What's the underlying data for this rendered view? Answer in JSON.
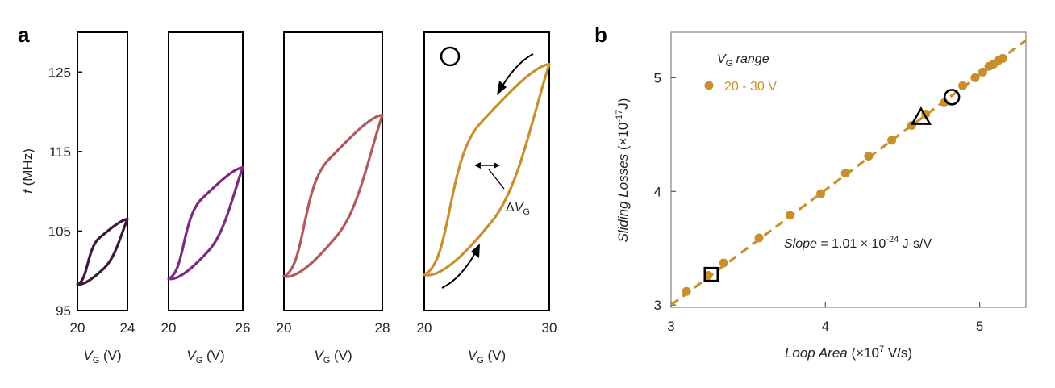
{
  "panels": {
    "a": "a",
    "b": "b"
  },
  "chart_data": [
    {
      "panel": "a",
      "type": "line",
      "subplot_index": 1,
      "ylabel": {
        "italic": "f",
        "rest": " (MHz)"
      },
      "xlabel": {
        "italic": "V",
        "sub": "G",
        "rest": " (V)"
      },
      "yticks": [
        "95",
        "105",
        "115",
        "125"
      ],
      "xticks": [
        "20",
        "24"
      ],
      "xlim": [
        20,
        24
      ],
      "ylim": [
        95,
        130
      ],
      "color": "#3a1a3c",
      "sweep": {
        "start_low": 98.3,
        "end_high": 106.5
      }
    },
    {
      "panel": "a",
      "type": "line",
      "subplot_index": 2,
      "xlabel": {
        "italic": "V",
        "sub": "G",
        "rest": " (V)"
      },
      "xticks": [
        "20",
        "26"
      ],
      "xlim": [
        20,
        26
      ],
      "ylim": [
        95,
        130
      ],
      "color": "#7c2a80",
      "sweep": {
        "start_low": 99.0,
        "end_high": 113.0
      }
    },
    {
      "panel": "a",
      "type": "line",
      "subplot_index": 3,
      "xlabel": {
        "italic": "V",
        "sub": "G",
        "rest": " (V)"
      },
      "xticks": [
        "20",
        "28"
      ],
      "xlim": [
        20,
        28
      ],
      "ylim": [
        95,
        130
      ],
      "color": "#b05a5e",
      "sweep": {
        "start_low": 99.3,
        "end_high": 119.6
      }
    },
    {
      "panel": "a",
      "type": "line",
      "subplot_index": 4,
      "xlabel": {
        "italic": "V",
        "sub": "G",
        "rest": " (V)"
      },
      "xticks": [
        "20",
        "30"
      ],
      "xlim": [
        20,
        30
      ],
      "ylim": [
        95,
        130
      ],
      "color": "#c98f2e",
      "sweep": {
        "start_low": 99.5,
        "end_high": 126.0
      },
      "annotation": {
        "symbol": "circle",
        "label_prefix": "Δ",
        "label_italic": "V",
        "label_sub": "G"
      }
    },
    {
      "panel": "b",
      "type": "scatter",
      "xlabel": {
        "italic": "Loop Area",
        "rest": " (×10",
        "sup": "7",
        "rest2": " V/s)"
      },
      "ylabel": {
        "italic": "Sliding Losses",
        "rest": " (×10",
        "sup": "-17",
        "rest2": "J)"
      },
      "xticks": [
        "3",
        "4",
        "5"
      ],
      "yticks": [
        "3",
        "4",
        "5"
      ],
      "xlim": [
        3,
        5.3
      ],
      "ylim": [
        2.98,
        5.4
      ],
      "color": "#c98f2e",
      "legend": {
        "title_italic": "V",
        "title_sub": "G",
        "title_rest": " range",
        "entry": "20 - 30 V"
      },
      "slope_text": {
        "italic": "Slope",
        "rest": " = 1.01 × 10",
        "sup": "-24",
        "rest2": " J·s/V"
      },
      "fit_line": {
        "x": [
          3.0,
          5.3
        ],
        "y": [
          3.0,
          5.33
        ]
      },
      "points": [
        {
          "x": 3.1,
          "y": 3.12
        },
        {
          "x": 3.24,
          "y": 3.26
        },
        {
          "x": 3.34,
          "y": 3.37
        },
        {
          "x": 3.57,
          "y": 3.59
        },
        {
          "x": 3.77,
          "y": 3.79
        },
        {
          "x": 3.97,
          "y": 3.98
        },
        {
          "x": 4.13,
          "y": 4.16
        },
        {
          "x": 4.28,
          "y": 4.31
        },
        {
          "x": 4.43,
          "y": 4.45
        },
        {
          "x": 4.56,
          "y": 4.58
        },
        {
          "x": 4.65,
          "y": 4.68
        },
        {
          "x": 4.77,
          "y": 4.78
        },
        {
          "x": 4.89,
          "y": 4.93
        },
        {
          "x": 4.97,
          "y": 5.0
        },
        {
          "x": 5.02,
          "y": 5.05
        },
        {
          "x": 5.06,
          "y": 5.1
        },
        {
          "x": 5.09,
          "y": 5.12
        },
        {
          "x": 5.12,
          "y": 5.15
        },
        {
          "x": 5.15,
          "y": 5.17
        }
      ],
      "markers": [
        {
          "symbol": "square",
          "x": 3.26,
          "y": 3.27
        },
        {
          "symbol": "triangle",
          "x": 4.62,
          "y": 4.65
        },
        {
          "symbol": "circle",
          "x": 4.82,
          "y": 4.83
        }
      ]
    }
  ]
}
